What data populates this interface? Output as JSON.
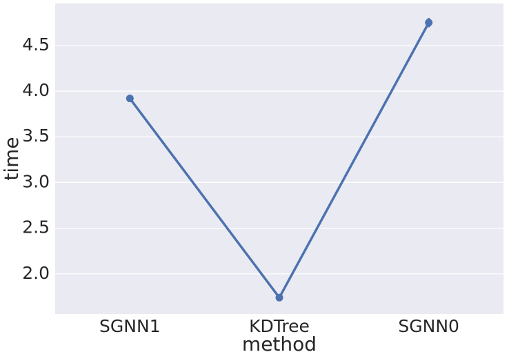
{
  "chart_data": {
    "type": "point",
    "xlabel": "method",
    "ylabel": "time",
    "categories": [
      "SGNN1",
      "KDTree",
      "SGNN0"
    ],
    "series": [
      {
        "color": "#4c72b0",
        "values": [
          3.92,
          1.74,
          4.75
        ],
        "errors": [
          0.04,
          0.01,
          0.05
        ]
      }
    ],
    "ylim": [
      1.56,
      4.96
    ],
    "yticks": [
      {
        "value": 2,
        "label": "2.0"
      },
      2.5,
      {
        "value": 3,
        "label": "3.0"
      },
      3.5,
      {
        "value": 4,
        "label": "4.0"
      },
      4.5
    ],
    "grid": true,
    "background": "#eaeaf2"
  }
}
